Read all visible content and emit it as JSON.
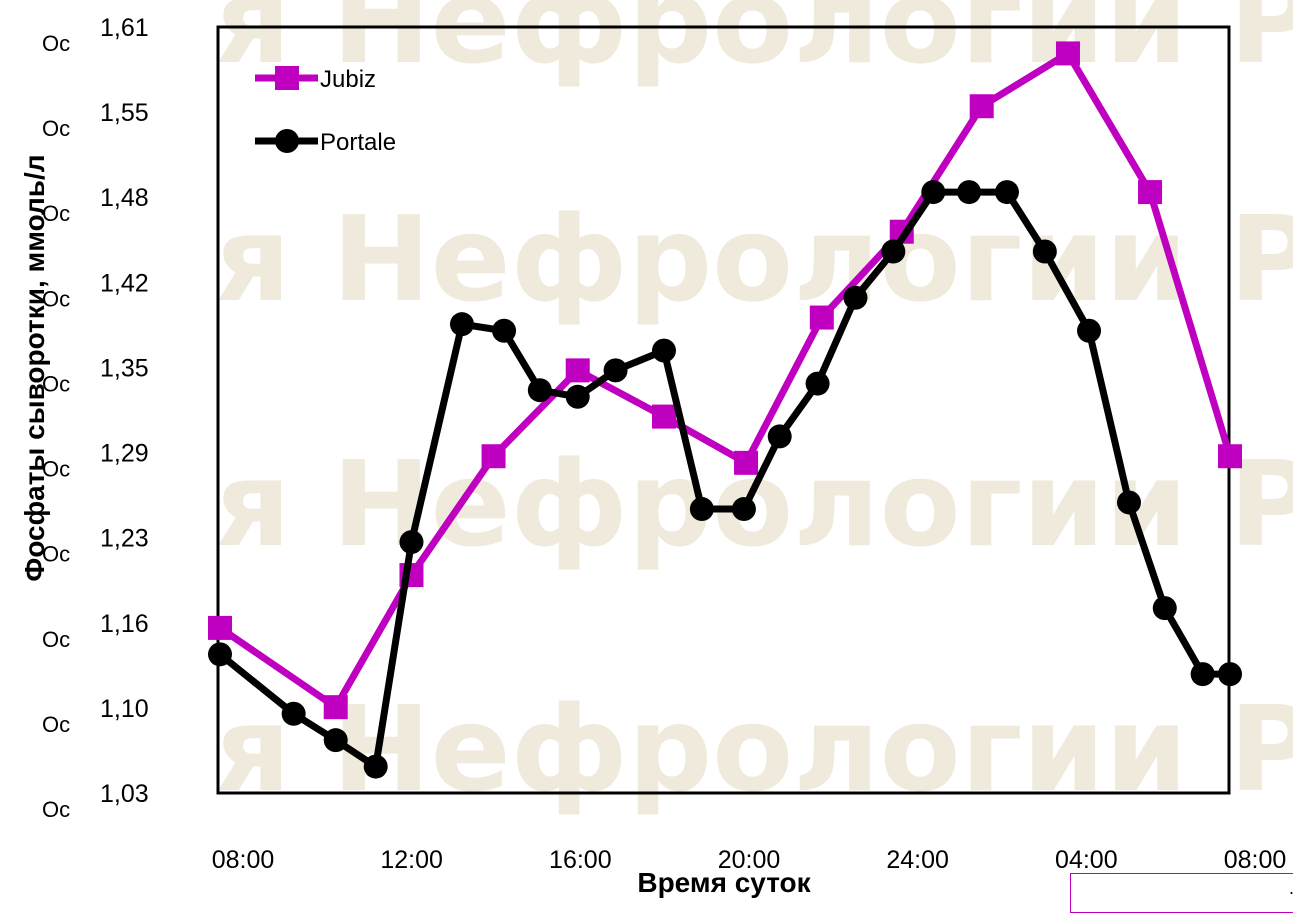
{
  "watermark": {
    "line1": "я Нефрологии РДО",
    "line2": "я Нефрологии РДО",
    "line3": "я Нефрологии РДО",
    "line4": "я Нефрологии РДО"
  },
  "chart_data": {
    "type": "line",
    "xlabel": "Время суток",
    "ylabel": "Фосфаты сыворотки, ммоль/л",
    "y_tick_prefix": "Oc",
    "x_tick_labels": [
      "08:00",
      "12:00",
      "16:00",
      "20:00",
      "24:00",
      "04:00",
      "08:00"
    ],
    "y_tick_labels": [
      "1,03",
      "1,10",
      "1,16",
      "1,23",
      "1,29",
      "1,35",
      "1,42",
      "1,48",
      "1,55",
      "1,61"
    ],
    "ylim": [
      1.03,
      1.61
    ],
    "xlim": [
      0,
      24
    ],
    "x_unit": "hours since 08:00",
    "grid": false,
    "legend_position": "top-left",
    "series": [
      {
        "name": "Jubiz",
        "color": "#c000c0",
        "marker": "square",
        "x": [
          0,
          2.75,
          4.55,
          6.5,
          8.5,
          10.55,
          12.5,
          14.3,
          16.2,
          18.1,
          20.15,
          22.1,
          24
        ],
        "y": [
          1.155,
          1.095,
          1.195,
          1.285,
          1.35,
          1.315,
          1.28,
          1.39,
          1.455,
          1.55,
          1.59,
          1.485,
          1.285
        ]
      },
      {
        "name": "Portale",
        "color": "#000000",
        "marker": "circle",
        "x": [
          0,
          1.75,
          2.75,
          3.7,
          4.55,
          5.75,
          6.75,
          7.6,
          8.5,
          9.4,
          10.55,
          11.45,
          12.45,
          13.3,
          14.2,
          15.1,
          16,
          16.95,
          17.8,
          18.7,
          19.6,
          20.65,
          21.6,
          22.45,
          23.35,
          24
        ],
        "y": [
          1.135,
          1.09,
          1.07,
          1.05,
          1.22,
          1.385,
          1.38,
          1.335,
          1.33,
          1.35,
          1.365,
          1.245,
          1.245,
          1.3,
          1.34,
          1.405,
          1.44,
          1.485,
          1.485,
          1.485,
          1.44,
          1.38,
          1.25,
          1.17,
          1.12,
          1.12
        ]
      }
    ]
  },
  "note_box": {
    "text": ". ."
  }
}
